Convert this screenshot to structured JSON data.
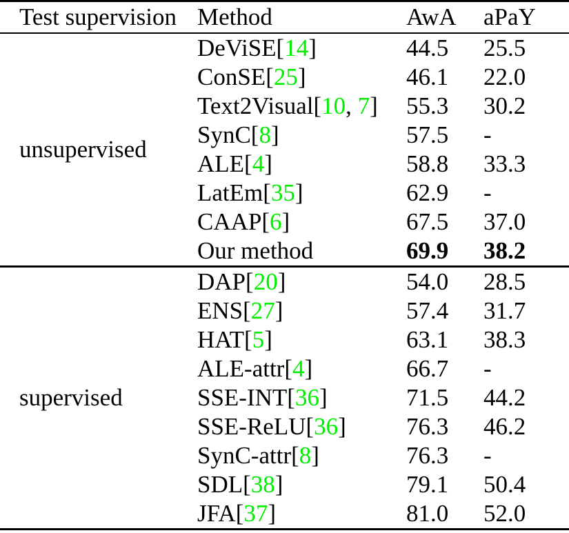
{
  "page": {
    "background": "#ffffff",
    "text_color": "#000000"
  },
  "table": {
    "headers": [
      "Test supervision",
      "Method",
      "AwA",
      "aPaY"
    ],
    "citation_color": "#00ee00",
    "missing_value_marker": "-",
    "sections": [
      {
        "label": "unsupervised",
        "rows": [
          {
            "method_parts": [
              {
                "t": "DeViSE[",
                "c": "plain"
              },
              {
                "t": "14",
                "c": "cite"
              },
              {
                "t": "]",
                "c": "plain"
              }
            ],
            "awa": "44.5",
            "apay": "25.5",
            "bold": false
          },
          {
            "method_parts": [
              {
                "t": "ConSE[",
                "c": "plain"
              },
              {
                "t": "25",
                "c": "cite"
              },
              {
                "t": "]",
                "c": "plain"
              }
            ],
            "awa": "46.1",
            "apay": "22.0",
            "bold": false
          },
          {
            "method_parts": [
              {
                "t": "Text2Visual[",
                "c": "plain"
              },
              {
                "t": "10",
                "c": "cite"
              },
              {
                "t": ", ",
                "c": "plain"
              },
              {
                "t": "7",
                "c": "cite"
              },
              {
                "t": "]",
                "c": "plain"
              }
            ],
            "awa": "55.3",
            "apay": "30.2",
            "bold": false
          },
          {
            "method_parts": [
              {
                "t": "SynC[",
                "c": "plain"
              },
              {
                "t": "8",
                "c": "cite"
              },
              {
                "t": "]",
                "c": "plain"
              }
            ],
            "awa": "57.5",
            "apay": "-",
            "bold": false
          },
          {
            "method_parts": [
              {
                "t": "ALE[",
                "c": "plain"
              },
              {
                "t": "4",
                "c": "cite"
              },
              {
                "t": "]",
                "c": "plain"
              }
            ],
            "awa": "58.8",
            "apay": "33.3",
            "bold": false
          },
          {
            "method_parts": [
              {
                "t": "LatEm[",
                "c": "plain"
              },
              {
                "t": "35",
                "c": "cite"
              },
              {
                "t": "]",
                "c": "plain"
              }
            ],
            "awa": "62.9",
            "apay": "-",
            "bold": false
          },
          {
            "method_parts": [
              {
                "t": "CAAP[",
                "c": "plain"
              },
              {
                "t": "6",
                "c": "cite"
              },
              {
                "t": "]",
                "c": "plain"
              }
            ],
            "awa": "67.5",
            "apay": "37.0",
            "bold": false
          },
          {
            "method_parts": [
              {
                "t": "Our method",
                "c": "plain"
              }
            ],
            "awa": "69.9",
            "apay": "38.2",
            "bold": true
          }
        ]
      },
      {
        "label": "supervised",
        "rows": [
          {
            "method_parts": [
              {
                "t": "DAP[",
                "c": "plain"
              },
              {
                "t": "20",
                "c": "cite"
              },
              {
                "t": "]",
                "c": "plain"
              }
            ],
            "awa": "54.0",
            "apay": "28.5",
            "bold": false
          },
          {
            "method_parts": [
              {
                "t": "ENS[",
                "c": "plain"
              },
              {
                "t": "27",
                "c": "cite"
              },
              {
                "t": "]",
                "c": "plain"
              }
            ],
            "awa": "57.4",
            "apay": "31.7",
            "bold": false
          },
          {
            "method_parts": [
              {
                "t": "HAT[",
                "c": "plain"
              },
              {
                "t": "5",
                "c": "cite"
              },
              {
                "t": "]",
                "c": "plain"
              }
            ],
            "awa": "63.1",
            "apay": "38.3",
            "bold": false
          },
          {
            "method_parts": [
              {
                "t": "ALE-attr[",
                "c": "plain"
              },
              {
                "t": "4",
                "c": "cite"
              },
              {
                "t": "]",
                "c": "plain"
              }
            ],
            "awa": "66.7",
            "apay": "-",
            "bold": false
          },
          {
            "method_parts": [
              {
                "t": "SSE-INT[",
                "c": "plain"
              },
              {
                "t": "36",
                "c": "cite"
              },
              {
                "t": "]",
                "c": "plain"
              }
            ],
            "awa": "71.5",
            "apay": "44.2",
            "bold": false
          },
          {
            "method_parts": [
              {
                "t": "SSE-ReLU[",
                "c": "plain"
              },
              {
                "t": "36",
                "c": "cite"
              },
              {
                "t": "]",
                "c": "plain"
              }
            ],
            "awa": "76.3",
            "apay": "46.2",
            "bold": false
          },
          {
            "method_parts": [
              {
                "t": "SynC-attr[",
                "c": "plain"
              },
              {
                "t": "8",
                "c": "cite"
              },
              {
                "t": "]",
                "c": "plain"
              }
            ],
            "awa": "76.3",
            "apay": "-",
            "bold": false
          },
          {
            "method_parts": [
              {
                "t": "SDL[",
                "c": "plain"
              },
              {
                "t": "38",
                "c": "cite"
              },
              {
                "t": "]",
                "c": "plain"
              }
            ],
            "awa": "79.1",
            "apay": "50.4",
            "bold": false
          },
          {
            "method_parts": [
              {
                "t": "JFA[",
                "c": "plain"
              },
              {
                "t": "37",
                "c": "cite"
              },
              {
                "t": "]",
                "c": "plain"
              }
            ],
            "awa": "81.0",
            "apay": "52.0",
            "bold": false
          }
        ]
      }
    ]
  }
}
